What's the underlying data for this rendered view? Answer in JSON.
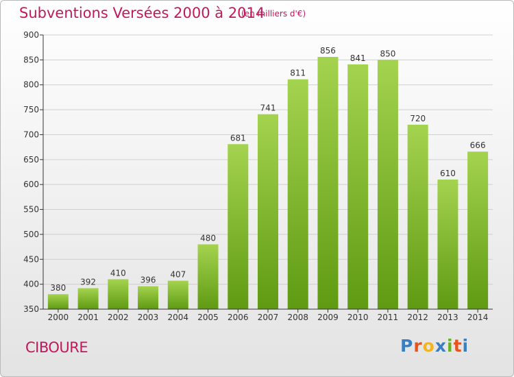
{
  "header": {
    "title": "Subventions Versées 2000 à 2014",
    "subtitle": "(en milliers d'€)"
  },
  "footer": {
    "commune": "CIBOURE",
    "brand": "Proxiti",
    "brand_colors": [
      "#3a7fc1",
      "#e8541e",
      "#f2b51f",
      "#3a7fc1",
      "#6ab023",
      "#e8541e",
      "#3a7fc1"
    ]
  },
  "colors": {
    "title": "#c2185b",
    "bar_top": "#a4d34f",
    "bar_bottom": "#5f9a12",
    "grid": "#cfcfcf",
    "axis": "#333333"
  },
  "chart_data": {
    "type": "bar",
    "categories": [
      "2000",
      "2001",
      "2002",
      "2003",
      "2004",
      "2005",
      "2006",
      "2007",
      "2008",
      "2009",
      "2010",
      "2011",
      "2012",
      "2013",
      "2014"
    ],
    "values": [
      380,
      392,
      410,
      396,
      407,
      480,
      681,
      741,
      811,
      856,
      841,
      850,
      720,
      610,
      666
    ],
    "title": "Subventions Versées 2000 à 2014",
    "subtitle": "(en milliers d'€)",
    "ylim": [
      350,
      900
    ],
    "yticks": [
      350,
      400,
      450,
      500,
      550,
      600,
      650,
      700,
      750,
      800,
      850,
      900
    ],
    "grid": true,
    "data_labels": true
  }
}
